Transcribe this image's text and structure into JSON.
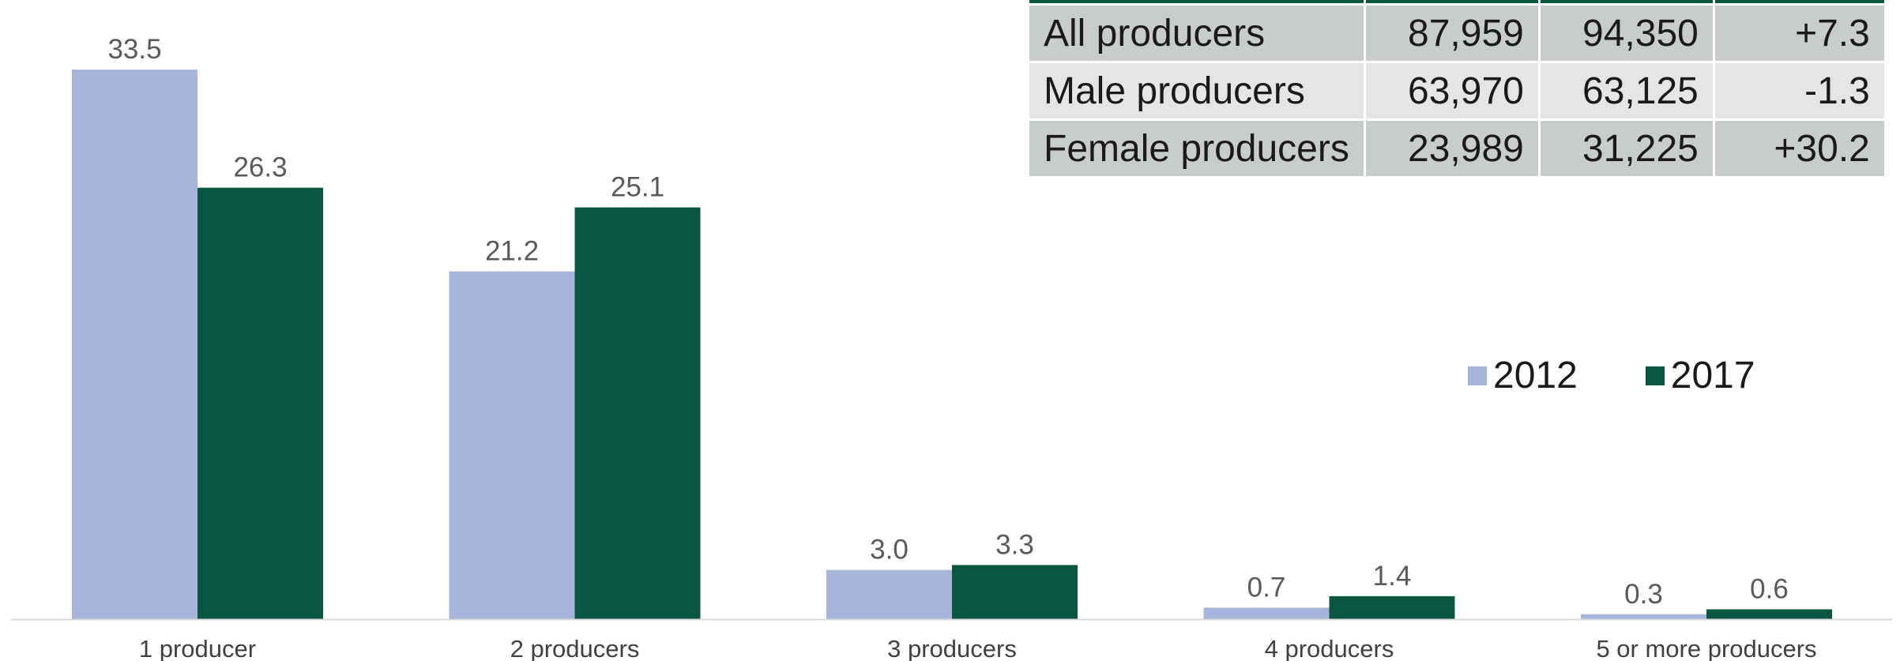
{
  "chart_data": {
    "type": "bar",
    "categories": [
      "1 producer",
      "2 producers",
      "3 producers",
      "4 producers",
      "5 or more producers"
    ],
    "series": [
      {
        "name": "2012",
        "color": "#a7b5db",
        "values": [
          33.5,
          21.2,
          3.0,
          0.7,
          0.3
        ],
        "labels": [
          "33.5",
          "21.2",
          "3.0",
          "0.7",
          "0.3"
        ]
      },
      {
        "name": "2017",
        "color": "#0b5640",
        "values": [
          26.3,
          25.1,
          3.3,
          1.4,
          0.6
        ],
        "labels": [
          "26.3",
          "25.1",
          "3.3",
          "1.4",
          "0.6"
        ]
      }
    ],
    "ylim": [
      0,
      35
    ],
    "legend_position": "right",
    "grid": false,
    "axis_color": "#d9d9d9"
  },
  "summary_table": {
    "header_color": "#0b5640",
    "row_colors": [
      "#c9cdc9",
      "#e4e6e3"
    ],
    "rows": [
      {
        "label": "All producers",
        "v2012": "87,959",
        "v2017": "94,350",
        "change": "+7.3"
      },
      {
        "label": "Male producers",
        "v2012": "63,970",
        "v2017": "63,125",
        "change": "-1.3"
      },
      {
        "label": "Female producers",
        "v2012": "23,989",
        "v2017": "31,225",
        "change": "+30.2"
      }
    ]
  }
}
